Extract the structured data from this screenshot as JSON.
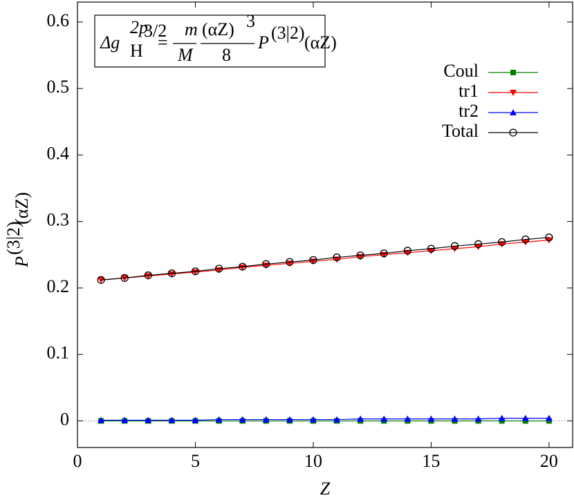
{
  "chart_data": {
    "type": "line",
    "xlabel": "Z",
    "ylabel": {
      "main": "P",
      "sup": "(3|2)",
      "tail": "(αZ)"
    },
    "formula": {
      "lhs": "Δg",
      "lhs_sub": "H",
      "lhs_sup": "2p",
      "lhs_sup_sub": "3/2",
      "eq": "=",
      "frac1_num": "m",
      "frac1_den": "M",
      "frac2_num": "(αZ)",
      "frac2_num_sup": "3",
      "frac2_den": "8",
      "rhs": "P",
      "rhs_sup": "(3|2)",
      "rhs_tail": "(αZ)"
    },
    "x": [
      1,
      2,
      3,
      4,
      5,
      6,
      7,
      8,
      9,
      10,
      11,
      12,
      13,
      14,
      15,
      16,
      17,
      18,
      19,
      20
    ],
    "series": [
      {
        "name": "Coul",
        "color": "#008000",
        "marker": "square",
        "values": [
          0,
          0,
          0,
          0,
          0,
          0,
          0,
          0,
          0,
          0,
          0,
          0,
          0,
          0,
          0,
          0,
          0,
          0,
          0,
          0
        ]
      },
      {
        "name": "tr1",
        "color": "#ff0000",
        "marker": "triangle-down",
        "values": [
          0.212,
          0.215,
          0.218,
          0.221,
          0.224,
          0.227,
          0.231,
          0.234,
          0.237,
          0.24,
          0.243,
          0.247,
          0.25,
          0.253,
          0.256,
          0.259,
          0.262,
          0.266,
          0.269,
          0.272
        ]
      },
      {
        "name": "tr2",
        "color": "#0000ff",
        "marker": "triangle-up",
        "values": [
          0.001,
          0.001,
          0.001,
          0.001,
          0.001,
          0.002,
          0.002,
          0.002,
          0.002,
          0.002,
          0.002,
          0.003,
          0.003,
          0.003,
          0.003,
          0.003,
          0.003,
          0.004,
          0.004,
          0.004
        ]
      },
      {
        "name": "Total",
        "color": "#000000",
        "marker": "circle",
        "values": [
          0.212,
          0.215,
          0.219,
          0.222,
          0.225,
          0.229,
          0.232,
          0.236,
          0.239,
          0.242,
          0.246,
          0.249,
          0.252,
          0.256,
          0.259,
          0.263,
          0.266,
          0.269,
          0.273,
          0.276
        ]
      }
    ],
    "xlim": [
      0,
      21
    ],
    "ylim": [
      -0.04,
      0.63
    ],
    "xticks": [
      0,
      5,
      10,
      15,
      20
    ],
    "yticks": [
      0,
      0.1,
      0.2,
      0.3,
      0.4,
      0.5,
      0.6
    ],
    "zero_line": true,
    "legend": "upper right"
  }
}
